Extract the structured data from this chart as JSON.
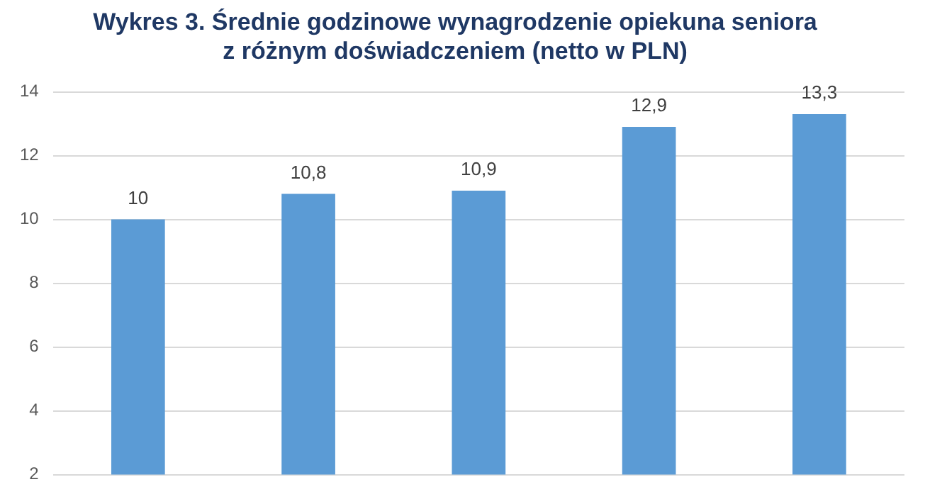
{
  "chart_data": {
    "type": "bar",
    "title": "Wykres 3. Średnie godzinowe wynagrodzenie opiekuna seniora\nz różnym doświadczeniem (netto w PLN)",
    "categories": [
      null,
      null,
      null,
      null,
      null
    ],
    "values": [
      10,
      10.8,
      10.9,
      12.9,
      13.3
    ],
    "value_labels": [
      "10",
      "10,8",
      "10,9",
      "12,9",
      "13,3"
    ],
    "color": "#5b9bd5",
    "ylim": [
      2,
      14
    ],
    "yticks": [
      2,
      4,
      6,
      8,
      10,
      12,
      14
    ],
    "grid": "y"
  }
}
